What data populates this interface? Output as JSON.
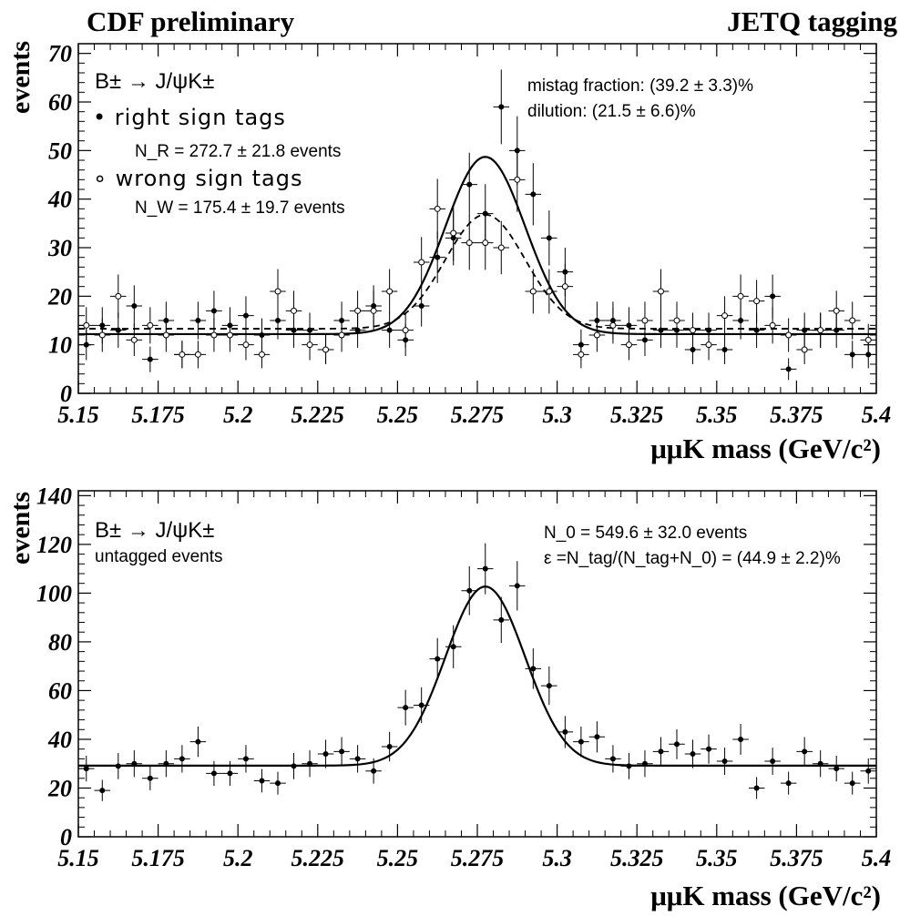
{
  "header": {
    "left": "CDF preliminary",
    "right": "JETQ tagging"
  },
  "panels": [
    {
      "ylabel": "events",
      "xlabel": "μμK mass (GeV/c²)",
      "x_ticks": [
        "5.15",
        "5.175",
        "5.2",
        "5.225",
        "5.25",
        "5.275",
        "5.3",
        "5.325",
        "5.35",
        "5.375",
        "5.4"
      ],
      "y_ticks": [
        "0",
        "10",
        "20",
        "30",
        "40",
        "50",
        "60",
        "70"
      ],
      "annotations": {
        "decay": "B± → J/ψK±",
        "right_sign": "• right sign tags",
        "n_right": "N_R = 272.7 ± 21.8 events",
        "wrong_sign": "∘ wrong sign tags",
        "n_wrong": "N_W = 175.4 ± 19.7 events",
        "mistag": "mistag fraction: (39.2 ± 3.3)%",
        "dilution": "dilution: (21.5 ± 6.6)%"
      }
    },
    {
      "ylabel": "events",
      "xlabel": "μμK mass (GeV/c²)",
      "x_ticks": [
        "5.15",
        "5.175",
        "5.2",
        "5.225",
        "5.25",
        "5.275",
        "5.3",
        "5.325",
        "5.35",
        "5.375",
        "5.4"
      ],
      "y_ticks": [
        "0",
        "20",
        "40",
        "60",
        "80",
        "100",
        "120",
        "140"
      ],
      "annotations": {
        "decay": "B± → J/ψK±",
        "untagged": "untagged events",
        "n0": "N_0 = 549.6 ± 32.0 events",
        "eff": "ε =N_tag/(N_tag+N_0) = (44.9 ± 2.2)%"
      }
    }
  ],
  "chart_data": [
    {
      "type": "scatter",
      "x_range": [
        5.15,
        5.4
      ],
      "ylim": [
        0,
        72
      ],
      "bin_width": 0.005,
      "series": [
        {
          "name": "right sign tags",
          "marker": "filled",
          "x": [
            5.1525,
            5.1575,
            5.1625,
            5.1675,
            5.1725,
            5.1775,
            5.1825,
            5.1875,
            5.1925,
            5.1975,
            5.2025,
            5.2075,
            5.2125,
            5.2175,
            5.2225,
            5.2275,
            5.2325,
            5.2375,
            5.2425,
            5.2475,
            5.2525,
            5.2575,
            5.2625,
            5.2675,
            5.2725,
            5.2775,
            5.2825,
            5.2875,
            5.2925,
            5.2975,
            5.3025,
            5.3075,
            5.3125,
            5.3175,
            5.3225,
            5.3275,
            5.3325,
            5.3375,
            5.3425,
            5.3475,
            5.3525,
            5.3575,
            5.3625,
            5.3675,
            5.3725,
            5.3775,
            5.3825,
            5.3875,
            5.3925,
            5.3975
          ],
          "y": [
            10,
            14,
            13,
            18,
            7,
            15,
            8,
            15,
            17,
            14,
            16,
            12,
            15,
            13,
            13,
            9,
            15,
            13,
            18,
            13,
            11,
            18,
            28,
            32,
            43,
            37,
            59,
            50,
            41,
            32,
            25,
            10,
            15,
            15,
            14,
            11,
            13,
            13,
            9,
            13,
            9,
            15,
            13,
            20,
            5,
            13,
            13,
            13,
            8,
            8
          ]
        },
        {
          "name": "wrong sign tags",
          "marker": "open",
          "x": [
            5.1525,
            5.1575,
            5.1625,
            5.1675,
            5.1725,
            5.1775,
            5.1825,
            5.1875,
            5.1925,
            5.1975,
            5.2025,
            5.2075,
            5.2125,
            5.2175,
            5.2225,
            5.2275,
            5.2325,
            5.2375,
            5.2425,
            5.2475,
            5.2525,
            5.2575,
            5.2625,
            5.2675,
            5.2725,
            5.2775,
            5.2825,
            5.2875,
            5.2925,
            5.2975,
            5.3025,
            5.3075,
            5.3125,
            5.3175,
            5.3225,
            5.3275,
            5.3325,
            5.3375,
            5.3425,
            5.3475,
            5.3525,
            5.3575,
            5.3625,
            5.3675,
            5.3725,
            5.3775,
            5.3825,
            5.3875,
            5.3925,
            5.3975
          ],
          "y": [
            14,
            12,
            20,
            11,
            14,
            12,
            8,
            8,
            12,
            12,
            10,
            8,
            21,
            17,
            10,
            9,
            12,
            17,
            17,
            21,
            13,
            27,
            38,
            33,
            31,
            31,
            30,
            44,
            21,
            21,
            22,
            8,
            12,
            14,
            10,
            15,
            21,
            15,
            13,
            10,
            16,
            20,
            19,
            14,
            12,
            9,
            13,
            17,
            15,
            11
          ]
        },
        {
          "name": "right sign fit",
          "line": "solid",
          "function": "gaussian",
          "background": 12.2,
          "amplitude": 36.5,
          "mean": 5.2775,
          "sigma": 0.0125
        },
        {
          "name": "wrong sign fit",
          "line": "dashed",
          "function": "gaussian",
          "background": 13.3,
          "amplitude": 23.5,
          "mean": 5.2775,
          "sigma": 0.0125
        }
      ]
    },
    {
      "type": "scatter",
      "x_range": [
        5.15,
        5.4
      ],
      "ylim": [
        0,
        142
      ],
      "bin_width": 0.005,
      "series": [
        {
          "name": "untagged events",
          "marker": "filled",
          "x": [
            5.1525,
            5.1575,
            5.1625,
            5.1675,
            5.1725,
            5.1775,
            5.1825,
            5.1875,
            5.1925,
            5.1975,
            5.2025,
            5.2075,
            5.2125,
            5.2175,
            5.2225,
            5.2275,
            5.2325,
            5.2375,
            5.2425,
            5.2475,
            5.2525,
            5.2575,
            5.2625,
            5.2675,
            5.2725,
            5.2775,
            5.2825,
            5.2875,
            5.2925,
            5.2975,
            5.3025,
            5.3075,
            5.3125,
            5.3175,
            5.3225,
            5.3275,
            5.3325,
            5.3375,
            5.3425,
            5.3475,
            5.3525,
            5.3575,
            5.3625,
            5.3675,
            5.3725,
            5.3775,
            5.3825,
            5.3875,
            5.3925,
            5.3975
          ],
          "y": [
            28,
            19,
            29,
            30,
            24,
            30,
            32,
            39,
            26,
            26,
            32,
            23,
            22,
            29,
            30,
            34,
            35,
            32,
            27,
            37,
            53,
            54,
            73,
            78,
            101,
            110,
            89,
            103,
            69,
            62,
            43,
            39,
            41,
            32,
            29,
            30,
            35,
            38,
            34,
            36,
            31,
            40,
            20,
            31,
            22,
            35,
            30,
            28,
            22,
            27
          ]
        },
        {
          "name": "untagged fit",
          "line": "solid",
          "function": "gaussian",
          "background": 29.2,
          "amplitude": 73.5,
          "mean": 5.2775,
          "sigma": 0.0125
        }
      ]
    }
  ]
}
